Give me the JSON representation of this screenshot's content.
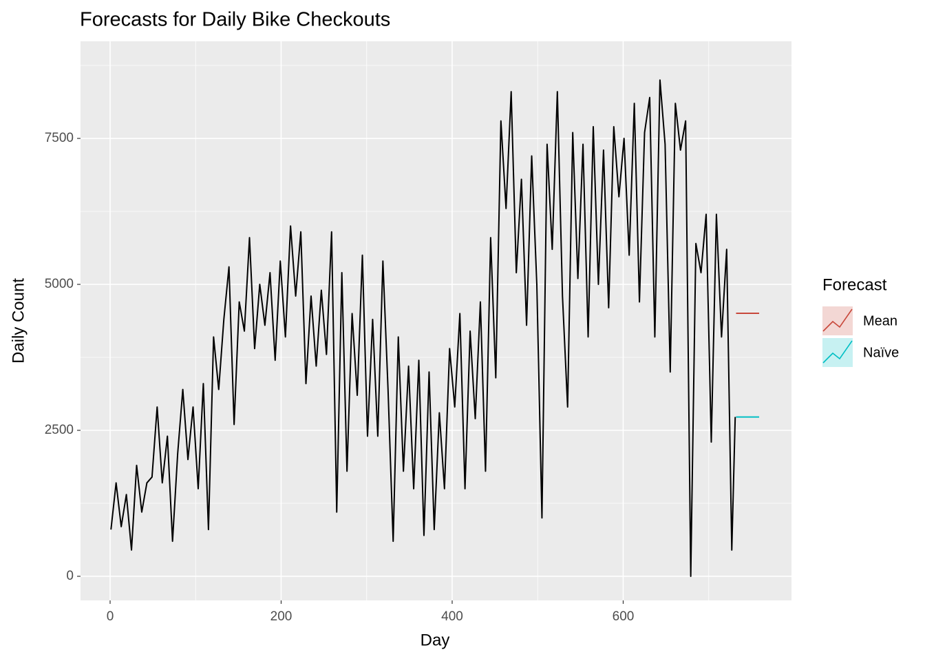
{
  "chart_data": {
    "type": "line",
    "title": "Forecasts for Daily Bike Checkouts",
    "x_label": "Day",
    "y_label": "Daily Count",
    "x": [
      1,
      7,
      13,
      19,
      25,
      31,
      37,
      43,
      49,
      55,
      61,
      67,
      73,
      79,
      85,
      91,
      97,
      103,
      109,
      115,
      121,
      127,
      133,
      139,
      145,
      151,
      157,
      163,
      169,
      175,
      181,
      187,
      193,
      199,
      205,
      211,
      217,
      223,
      229,
      235,
      241,
      247,
      253,
      259,
      265,
      271,
      277,
      283,
      289,
      295,
      301,
      307,
      313,
      319,
      325,
      331,
      337,
      343,
      349,
      355,
      361,
      367,
      373,
      379,
      385,
      391,
      397,
      403,
      409,
      415,
      421,
      427,
      433,
      439,
      445,
      451,
      457,
      463,
      469,
      475,
      481,
      487,
      493,
      499,
      505,
      511,
      517,
      523,
      529,
      535,
      541,
      547,
      553,
      559,
      565,
      571,
      577,
      583,
      589,
      595,
      601,
      607,
      613,
      619,
      625,
      631,
      637,
      643,
      649,
      655,
      661,
      667,
      673,
      679,
      685,
      691,
      697,
      703,
      709,
      715,
      721,
      727,
      731
    ],
    "values": [
      800,
      1600,
      850,
      1400,
      450,
      1900,
      1100,
      1600,
      1700,
      2900,
      1600,
      2400,
      600,
      2100,
      3200,
      2000,
      2900,
      1500,
      3300,
      800,
      4100,
      3200,
      4400,
      5300,
      2600,
      4700,
      4200,
      5800,
      3900,
      5000,
      4300,
      5200,
      3700,
      5400,
      4100,
      6000,
      4800,
      5900,
      3300,
      4800,
      3600,
      4900,
      3800,
      5900,
      1100,
      5200,
      1800,
      4500,
      3100,
      5500,
      2400,
      4400,
      2400,
      5400,
      3200,
      600,
      4100,
      1800,
      3600,
      1500,
      3700,
      700,
      3500,
      800,
      2800,
      1500,
      3900,
      2900,
      4500,
      1500,
      4200,
      2700,
      4700,
      1800,
      5800,
      3400,
      7800,
      6300,
      8300,
      5200,
      6800,
      4300,
      7200,
      5000,
      1000,
      7400,
      5600,
      8300,
      4800,
      2900,
      7600,
      5100,
      7400,
      4100,
      7700,
      5000,
      7300,
      4600,
      7700,
      6500,
      7500,
      5500,
      8100,
      4700,
      7600,
      8200,
      4100,
      8500,
      7400,
      3500,
      8100,
      7300,
      7800,
      0,
      5700,
      5200,
      6200,
      2300,
      6200,
      4100,
      5600,
      450,
      2729
    ],
    "color": "#000000",
    "legend_title": "Forecast",
    "series": [
      {
        "name": "Mean",
        "color": "#c8473a",
        "x": [
          732,
          759
        ],
        "values": [
          4504,
          4504
        ]
      },
      {
        "name": "Naïve",
        "color": "#00bfc4",
        "x": [
          732,
          759
        ],
        "values": [
          2729,
          2729
        ]
      }
    ],
    "xlim": [
      -34.6,
      796.8
    ],
    "xticks": [
      0,
      200,
      400,
      600
    ],
    "ylim": [
      -413,
      9163
    ],
    "yticks": [
      0,
      2500,
      5000,
      7500
    ],
    "grid": true
  }
}
